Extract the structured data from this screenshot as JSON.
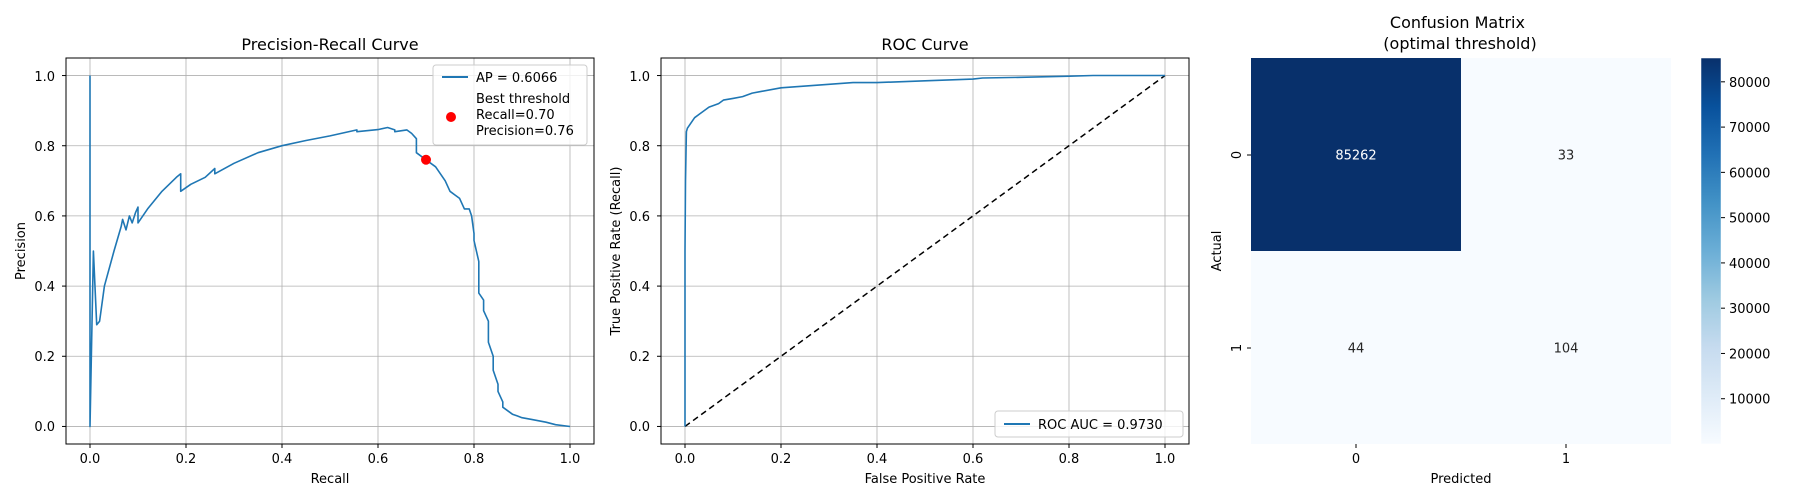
{
  "chart_data": [
    {
      "type": "line",
      "title": "Precision-Recall Curve",
      "xlabel": "Recall",
      "ylabel": "Precision",
      "xlim": [
        -0.05,
        1.05
      ],
      "ylim": [
        -0.05,
        1.05
      ],
      "xticks": [
        "0.0",
        "0.2",
        "0.4",
        "0.6",
        "0.8",
        "1.0"
      ],
      "yticks": [
        "0.0",
        "0.2",
        "0.4",
        "0.6",
        "0.8",
        "1.0"
      ],
      "grid": true,
      "legend_position": "upper right",
      "color": "#1f77b4",
      "marker_color": "#ff0000",
      "series": [
        {
          "name": "AP = 0.6066",
          "x": [
            0,
            0,
            0,
            0.007,
            0.014,
            0.014,
            0.02,
            0.03,
            0.05,
            0.065,
            0.068,
            0.075,
            0.082,
            0.088,
            0.095,
            0.1,
            0.1,
            0.12,
            0.15,
            0.18,
            0.189,
            0.189,
            0.21,
            0.24,
            0.26,
            0.26,
            0.3,
            0.35,
            0.4,
            0.45,
            0.5,
            0.556,
            0.556,
            0.6,
            0.62,
            0.635,
            0.635,
            0.66,
            0.67,
            0.68,
            0.68,
            0.7,
            0.7,
            0.71,
            0.72,
            0.73,
            0.74,
            0.75,
            0.76,
            0.77,
            0.78,
            0.79,
            0.795,
            0.8,
            0.8,
            0.81,
            0.81,
            0.82,
            0.82,
            0.83,
            0.83,
            0.84,
            0.84,
            0.85,
            0.85,
            0.86,
            0.86,
            0.87,
            0.88,
            0.89,
            0.9,
            0.92,
            0.95,
            0.97,
            1.0
          ],
          "y": [
            1.0,
            0.0,
            0.0,
            0.5,
            0.29,
            0.29,
            0.3,
            0.4,
            0.5,
            0.57,
            0.59,
            0.56,
            0.6,
            0.58,
            0.61,
            0.625,
            0.58,
            0.62,
            0.67,
            0.71,
            0.72,
            0.67,
            0.69,
            0.71,
            0.735,
            0.72,
            0.75,
            0.78,
            0.8,
            0.815,
            0.828,
            0.845,
            0.84,
            0.846,
            0.852,
            0.845,
            0.84,
            0.845,
            0.835,
            0.82,
            0.78,
            0.76,
            0.76,
            0.75,
            0.74,
            0.72,
            0.7,
            0.67,
            0.66,
            0.65,
            0.62,
            0.62,
            0.6,
            0.55,
            0.53,
            0.47,
            0.38,
            0.36,
            0.33,
            0.3,
            0.24,
            0.2,
            0.16,
            0.12,
            0.1,
            0.07,
            0.055,
            0.045,
            0.035,
            0.03,
            0.025,
            0.02,
            0.012,
            0.005,
            0.0
          ]
        }
      ],
      "best_point": {
        "x": 0.7,
        "y": 0.76,
        "label_lines": [
          "Best threshold",
          "Recall=0.70",
          "Precision=0.76"
        ]
      }
    },
    {
      "type": "line",
      "title": "ROC Curve",
      "xlabel": "False Positive Rate",
      "ylabel": "True Positive Rate (Recall)",
      "xlim": [
        -0.05,
        1.05
      ],
      "ylim": [
        -0.05,
        1.05
      ],
      "xticks": [
        "0.0",
        "0.2",
        "0.4",
        "0.6",
        "0.8",
        "1.0"
      ],
      "yticks": [
        "0.0",
        "0.2",
        "0.4",
        "0.6",
        "0.8",
        "1.0"
      ],
      "grid": true,
      "legend_position": "lower right",
      "color": "#1f77b4",
      "series": [
        {
          "name": "ROC AUC = 0.9730",
          "x": [
            0,
            0,
            0.001,
            0.002,
            0.003,
            0.005,
            0.01,
            0.015,
            0.02,
            0.03,
            0.04,
            0.05,
            0.06,
            0.07,
            0.08,
            0.1,
            0.12,
            0.14,
            0.16,
            0.2,
            0.25,
            0.3,
            0.35,
            0.4,
            0.5,
            0.6,
            0.62,
            0.7,
            0.8,
            0.85,
            0.9,
            1.0
          ],
          "y": [
            0,
            0.5,
            0.7,
            0.78,
            0.84,
            0.85,
            0.86,
            0.87,
            0.88,
            0.89,
            0.9,
            0.91,
            0.915,
            0.92,
            0.93,
            0.935,
            0.94,
            0.95,
            0.955,
            0.965,
            0.97,
            0.975,
            0.98,
            0.98,
            0.985,
            0.99,
            0.993,
            0.995,
            0.998,
            1.0,
            1.0,
            1.0
          ]
        }
      ],
      "diagonal": {
        "x": [
          0,
          1
        ],
        "y": [
          0,
          1
        ],
        "style": "dashed",
        "color": "#000000"
      }
    },
    {
      "type": "heatmap",
      "title_lines": [
        "Confusion Matrix",
        "(optimal threshold)"
      ],
      "xlabel": "Predicted",
      "ylabel": "Actual",
      "x_categories": [
        "0",
        "1"
      ],
      "y_categories": [
        "0",
        "1"
      ],
      "values": [
        [
          85262,
          33
        ],
        [
          44,
          104
        ]
      ],
      "colormap": "Blues",
      "colorbar": {
        "range": [
          0,
          85262
        ],
        "ticks": [
          "10000",
          "20000",
          "30000",
          "40000",
          "50000",
          "60000",
          "70000",
          "80000"
        ],
        "tick_values": [
          10000,
          20000,
          30000,
          40000,
          50000,
          60000,
          70000,
          80000
        ]
      }
    }
  ]
}
